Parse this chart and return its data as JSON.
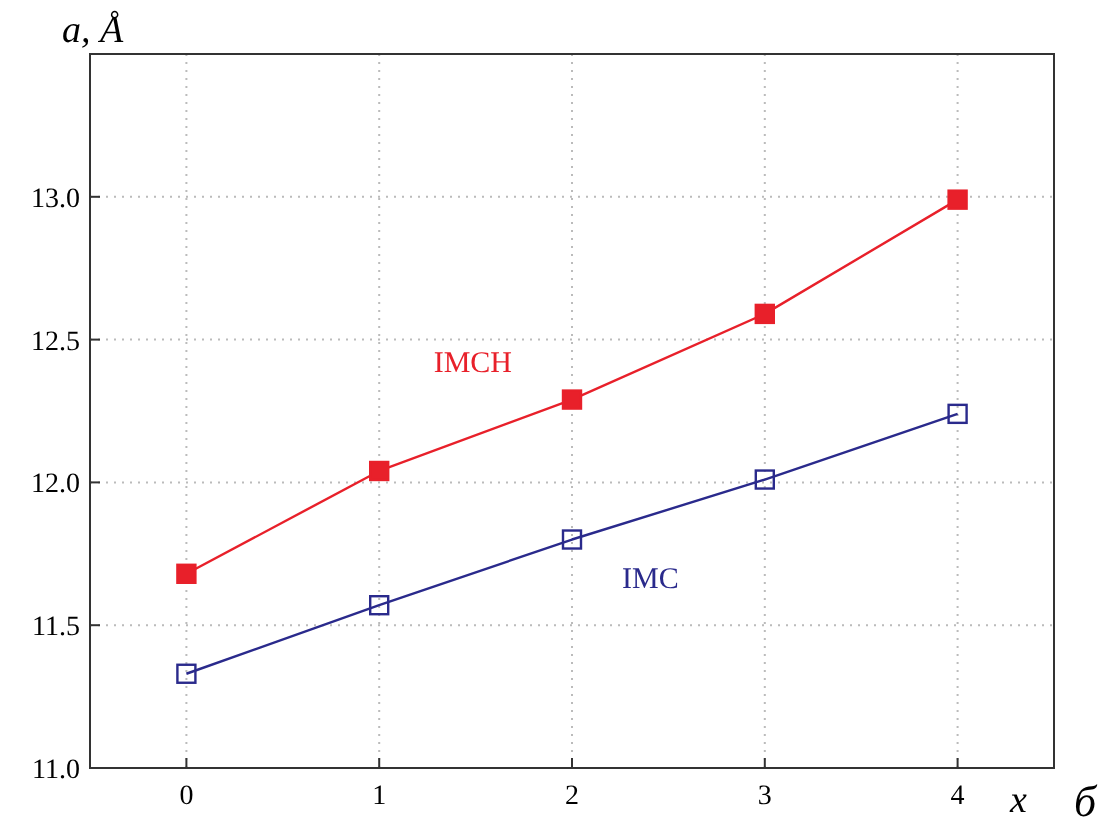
{
  "chart_data": {
    "type": "line",
    "ylabel": "a, Å",
    "xlabel": "x",
    "annotations": [
      "б"
    ],
    "x": [
      0,
      1,
      2,
      3,
      4
    ],
    "xlim": [
      -0.5,
      4.5
    ],
    "xticks": [
      0,
      1,
      2,
      3,
      4
    ],
    "ylim": [
      11,
      13.5
    ],
    "yticks": [
      {
        "value": 11,
        "label": "11.0"
      },
      {
        "value": 11.5,
        "label": "11.5"
      },
      {
        "value": 12,
        "label": "12.0"
      },
      {
        "value": 12.5,
        "label": "12.5"
      },
      {
        "value": 13,
        "label": "13.0"
      }
    ],
    "grid": true,
    "marker": "square",
    "line_style": "solid",
    "series": [
      {
        "name": "IMCH",
        "color": "#e8202a",
        "values": [
          11.68,
          12.04,
          12.29,
          12.59,
          12.99
        ]
      },
      {
        "name": "IMC",
        "color": "#2a2a8c",
        "values": [
          11.33,
          11.57,
          11.8,
          12.01,
          12.24
        ]
      }
    ]
  }
}
